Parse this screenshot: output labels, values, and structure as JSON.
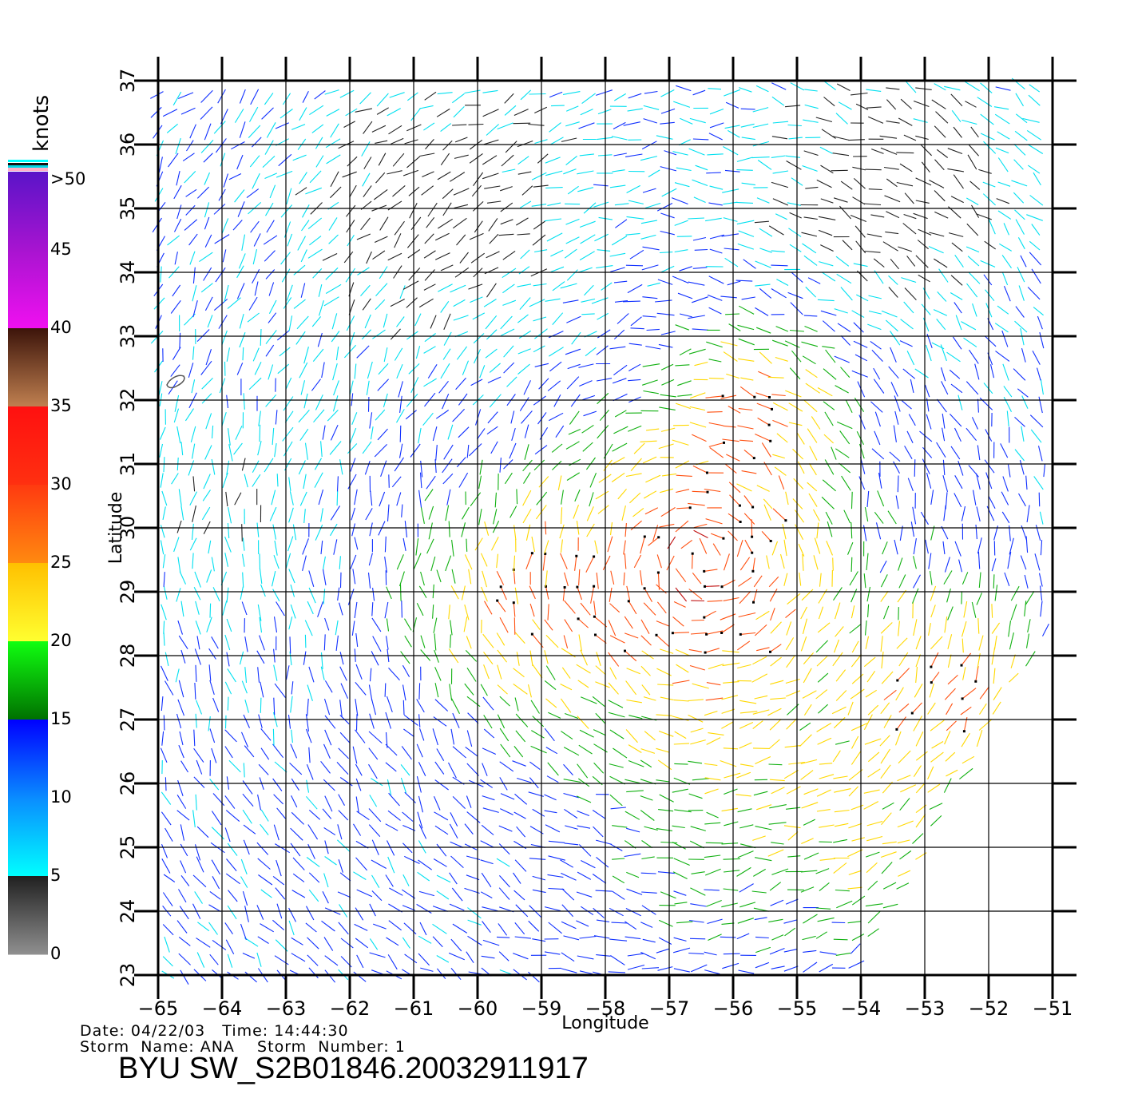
{
  "colorbar": {
    "title": "knots",
    "labels": [
      ">50",
      "45",
      "40",
      "35",
      "30",
      "25",
      "20",
      "15",
      "10",
      "5",
      "0"
    ],
    "bands": [
      {
        "from": 50,
        "to": 45,
        "colors": [
          "#5a14c8",
          "#a814d0"
        ]
      },
      {
        "from": 45,
        "to": 40,
        "colors": [
          "#a814d0",
          "#f010f0"
        ]
      },
      {
        "from": 40,
        "to": 35,
        "colors": [
          "#3c140a",
          "#c08050"
        ]
      },
      {
        "from": 35,
        "to": 30,
        "colors": [
          "#ff1010",
          "#ff3010"
        ]
      },
      {
        "from": 30,
        "to": 25,
        "colors": [
          "#ff3a10",
          "#ff8a10"
        ]
      },
      {
        "from": 25,
        "to": 20,
        "colors": [
          "#ffc000",
          "#ffff30"
        ]
      },
      {
        "from": 20,
        "to": 15,
        "colors": [
          "#10ff10",
          "#007000"
        ]
      },
      {
        "from": 15,
        "to": 10,
        "colors": [
          "#0000ff",
          "#0a8cff"
        ]
      },
      {
        "from": 10,
        "to": 5,
        "colors": [
          "#0a8cff",
          "#00ffff"
        ]
      },
      {
        "from": 5,
        "to": 0,
        "colors": [
          "#202020",
          "#909090"
        ]
      }
    ]
  },
  "map": {
    "xlabel": "Longitude",
    "ylabel": "Latitude",
    "lon_range": [
      -65,
      -51
    ],
    "lat_range": [
      23,
      37
    ],
    "lon_ticks": [
      "−65",
      "−64",
      "−63",
      "−62",
      "−61",
      "−60",
      "−59",
      "−58",
      "−57",
      "−56",
      "−55",
      "−54",
      "−53",
      "−52",
      "−51"
    ],
    "lat_ticks": [
      "23",
      "24",
      "25",
      "26",
      "27",
      "28",
      "29",
      "30",
      "31",
      "32",
      "33",
      "34",
      "35",
      "36",
      "37"
    ],
    "grid": true,
    "wind_colors": {
      "calm": "#222222",
      "light": "#00e0f0",
      "moderate": "#1030ff",
      "fresh": "#10b010",
      "strong": "#ffd800",
      "gale": "#ff5010",
      "storm": "#c01010"
    }
  },
  "info": {
    "date_line": "Date: 04/22/03   Time: 14:44:30",
    "storm_line": "Storm  Name: ANA    Storm  Number: 1",
    "file_label": "BYU  SW_S2B01846.20032911917"
  }
}
